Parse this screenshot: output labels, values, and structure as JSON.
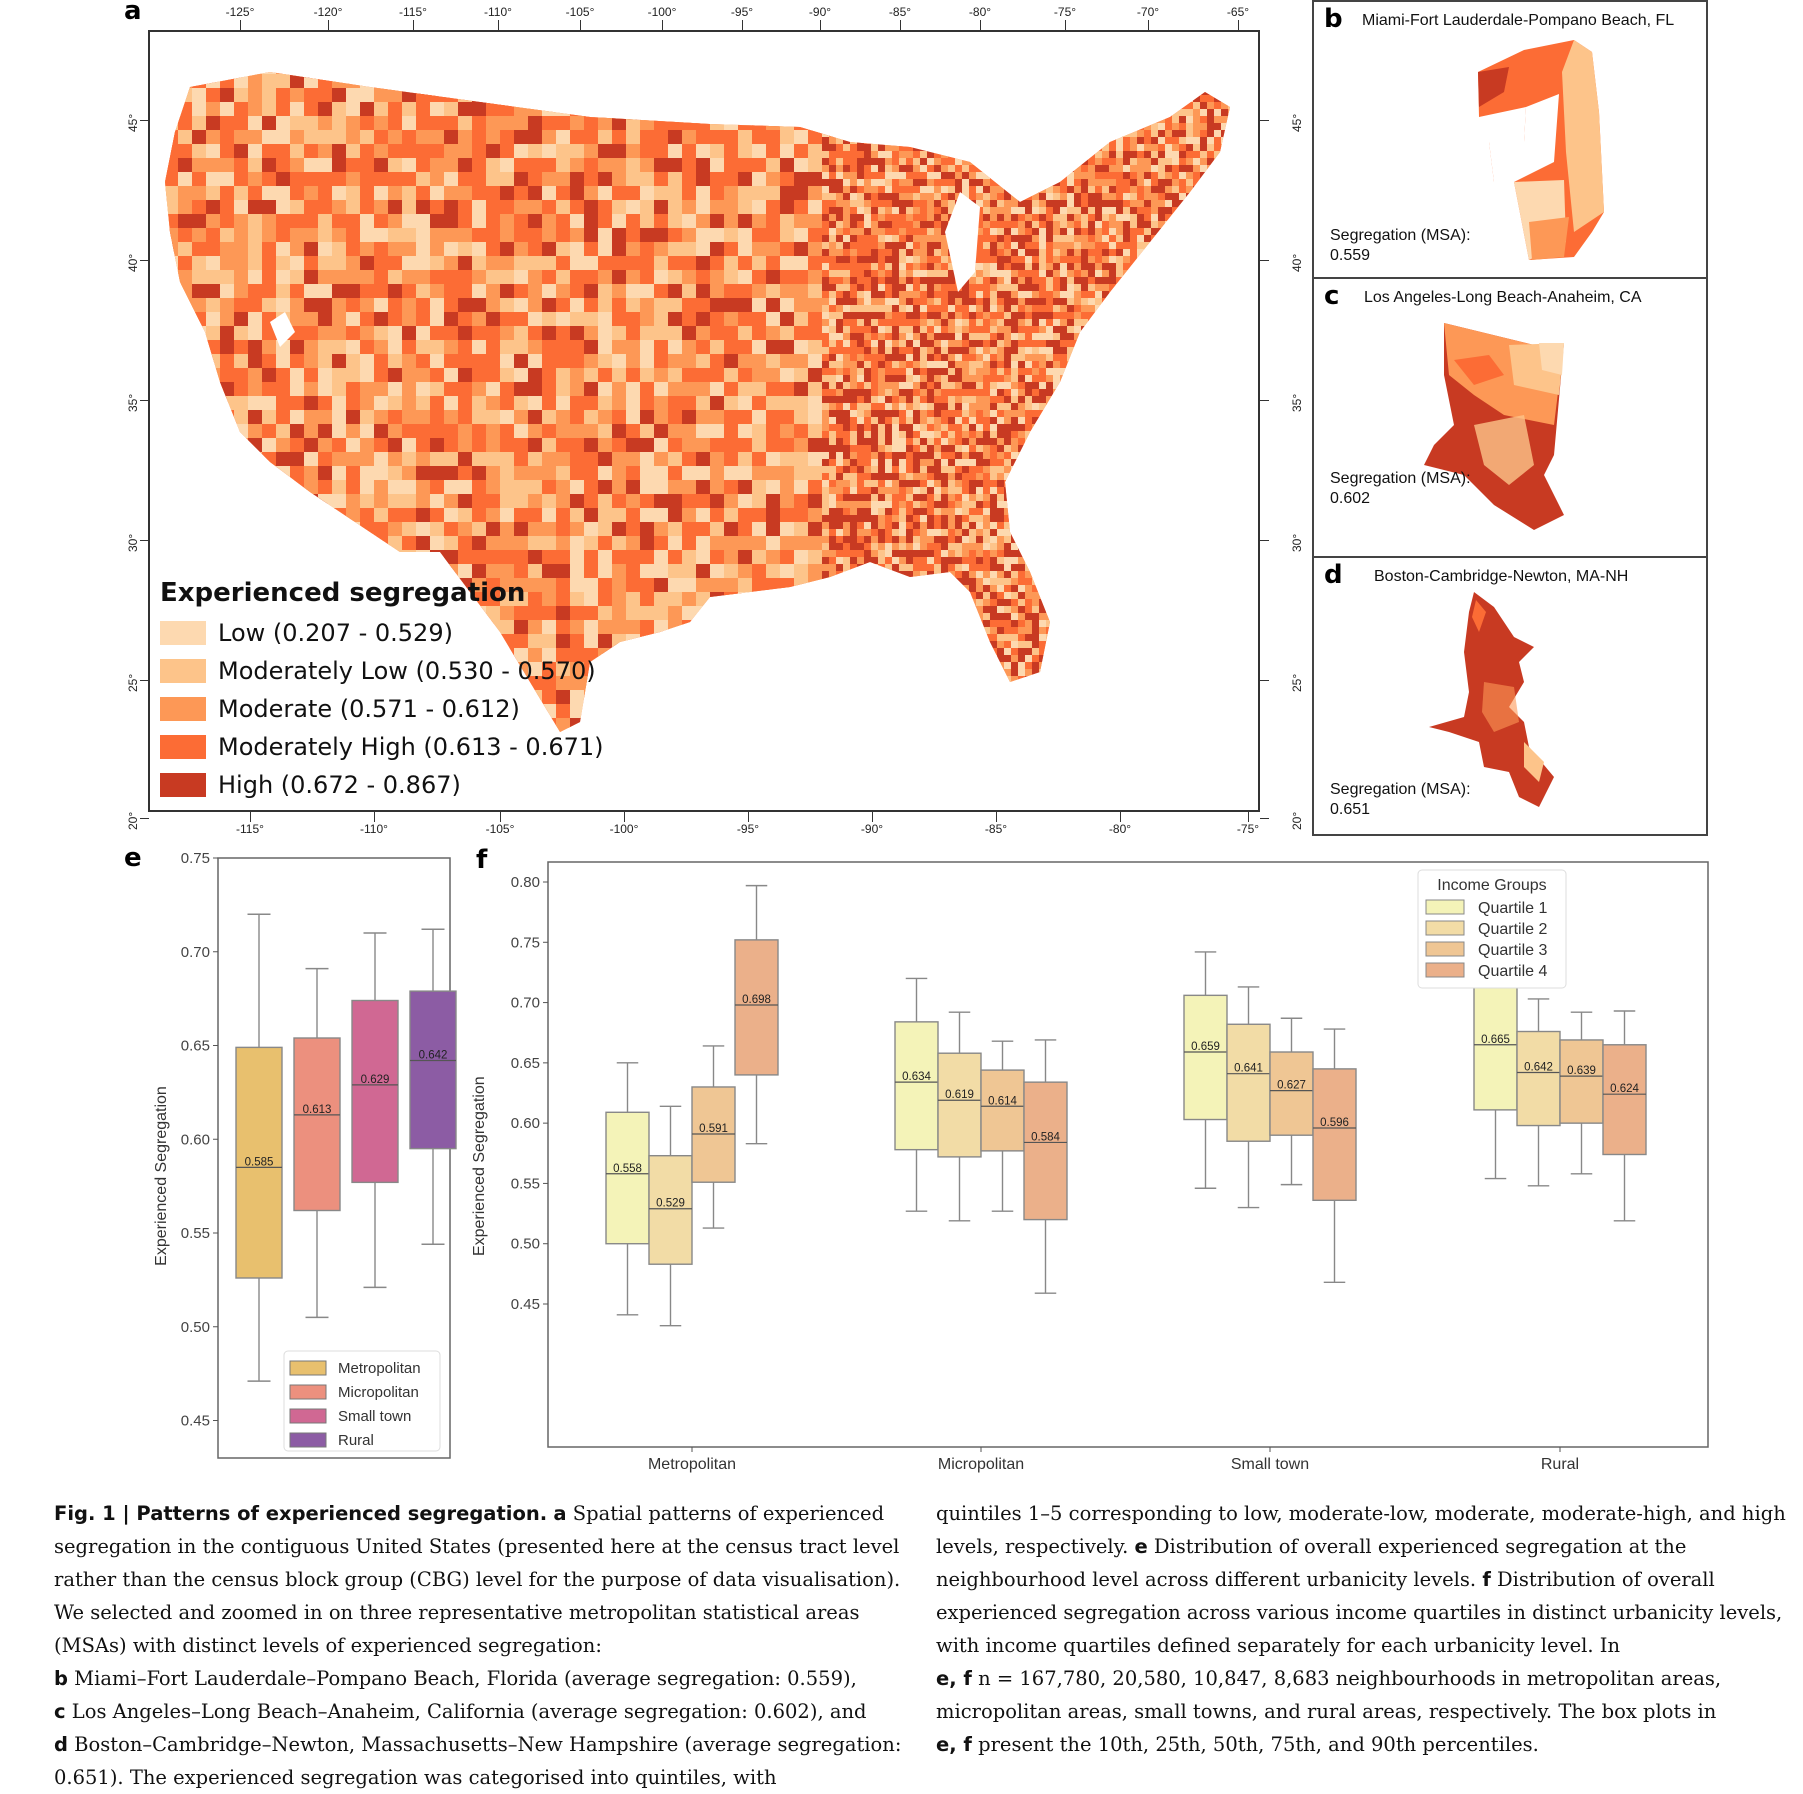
{
  "figure": {
    "panel_letters": [
      "a",
      "b",
      "c",
      "d",
      "e",
      "f"
    ]
  },
  "map_a": {
    "top_longitude_ticks": [
      "-125°",
      "-120°",
      "-115°",
      "-110°",
      "-105°",
      "-100°",
      "-95°",
      "-90°",
      "-85°",
      "-80°",
      "-75°",
      "-70°",
      "-65°"
    ],
    "bottom_longitude_ticks": [
      "-115°",
      "-110°",
      "-105°",
      "-100°",
      "-95°",
      "-90°",
      "-85°",
      "-80°",
      "-75°"
    ],
    "latitude_ticks": [
      "45°",
      "40°",
      "35°",
      "30°",
      "25°",
      "20°"
    ],
    "legend": {
      "title": "Experienced segregation",
      "items": [
        {
          "label": "Low (0.207 - 0.529)",
          "color": "#fdd9b0"
        },
        {
          "label": "Moderately Low (0.530 - 0.570)",
          "color": "#fdc48a"
        },
        {
          "label": "Moderate (0.571 - 0.612)",
          "color": "#fd9856"
        },
        {
          "label": "Moderately High (0.613 - 0.671)",
          "color": "#fc6c35"
        },
        {
          "label": "High (0.672 - 0.867)",
          "color": "#c83a22"
        }
      ]
    }
  },
  "insets": [
    {
      "letter": "b",
      "title": "Miami-Fort Lauderdale-Pompano Beach, FL",
      "seg_label": "Segregation (MSA):",
      "seg_value": "0.559"
    },
    {
      "letter": "c",
      "title": "Los Angeles-Long Beach-Anaheim, CA",
      "seg_label": "Segregation (MSA):",
      "seg_value": "0.602"
    },
    {
      "letter": "d",
      "title": "Boston-Cambridge-Newton, MA-NH",
      "seg_label": "Segregation (MSA):",
      "seg_value": "0.651"
    }
  ],
  "chart_data": [
    {
      "panel": "e",
      "type": "box",
      "ylabel": "Experienced Segregation",
      "ylim": [
        0.43,
        0.75
      ],
      "yticks": [
        "0.45",
        "0.50",
        "0.55",
        "0.60",
        "0.65",
        "0.70",
        "0.75"
      ],
      "legend_position": "bottom-right",
      "whiskers": "10th and 90th percentiles",
      "series": [
        {
          "name": "Metropolitan",
          "color": "#e8c06e",
          "p10": 0.471,
          "q1": 0.526,
          "median": 0.585,
          "q3": 0.649,
          "p90": 0.72,
          "median_label": "0.585"
        },
        {
          "name": "Micropolitan",
          "color": "#ec907e",
          "p10": 0.505,
          "q1": 0.562,
          "median": 0.613,
          "q3": 0.654,
          "p90": 0.691,
          "median_label": "0.613"
        },
        {
          "name": "Small town",
          "color": "#d06893",
          "p10": 0.521,
          "q1": 0.577,
          "median": 0.629,
          "q3": 0.674,
          "p90": 0.71,
          "median_label": "0.629"
        },
        {
          "name": "Rural",
          "color": "#8c5ca4",
          "p10": 0.544,
          "q1": 0.595,
          "median": 0.642,
          "q3": 0.679,
          "p90": 0.712,
          "median_label": "0.642"
        }
      ]
    },
    {
      "panel": "f",
      "type": "box",
      "ylabel": "Experienced Segregation",
      "ylim": [
        0.41,
        0.82
      ],
      "yticks": [
        "0.45",
        "0.50",
        "0.55",
        "0.60",
        "0.65",
        "0.70",
        "0.75",
        "0.80"
      ],
      "categories": [
        "Metropolitan",
        "Micropolitan",
        "Small town",
        "Rural"
      ],
      "legend_title": "Income Groups",
      "legend_position": "top-right",
      "series": [
        {
          "name": "Quartile 1",
          "color": "#f4f3b8",
          "boxes": [
            {
              "p10": 0.441,
              "q1": 0.5,
              "median": 0.558,
              "q3": 0.609,
              "p90": 0.65,
              "median_label": "0.558"
            },
            {
              "p10": 0.527,
              "q1": 0.578,
              "median": 0.634,
              "q3": 0.684,
              "p90": 0.72,
              "median_label": "0.634"
            },
            {
              "p10": 0.546,
              "q1": 0.603,
              "median": 0.659,
              "q3": 0.706,
              "p90": 0.742,
              "median_label": "0.659"
            },
            {
              "p10": 0.554,
              "q1": 0.611,
              "median": 0.665,
              "q3": 0.714,
              "p90": 0.749,
              "median_label": "0.665"
            }
          ]
        },
        {
          "name": "Quartile 2",
          "color": "#f2dca6",
          "boxes": [
            {
              "p10": 0.432,
              "q1": 0.483,
              "median": 0.529,
              "q3": 0.573,
              "p90": 0.614,
              "median_label": "0.529"
            },
            {
              "p10": 0.519,
              "q1": 0.572,
              "median": 0.619,
              "q3": 0.658,
              "p90": 0.692,
              "median_label": "0.619"
            },
            {
              "p10": 0.53,
              "q1": 0.585,
              "median": 0.641,
              "q3": 0.682,
              "p90": 0.713,
              "median_label": "0.641"
            },
            {
              "p10": 0.548,
              "q1": 0.598,
              "median": 0.642,
              "q3": 0.676,
              "p90": 0.703,
              "median_label": "0.642"
            }
          ]
        },
        {
          "name": "Quartile 3",
          "color": "#efc694",
          "boxes": [
            {
              "p10": 0.513,
              "q1": 0.551,
              "median": 0.591,
              "q3": 0.63,
              "p90": 0.664,
              "median_label": "0.591"
            },
            {
              "p10": 0.527,
              "q1": 0.577,
              "median": 0.614,
              "q3": 0.644,
              "p90": 0.668,
              "median_label": "0.614"
            },
            {
              "p10": 0.549,
              "q1": 0.59,
              "median": 0.627,
              "q3": 0.659,
              "p90": 0.687,
              "median_label": "0.627"
            },
            {
              "p10": 0.558,
              "q1": 0.6,
              "median": 0.639,
              "q3": 0.669,
              "p90": 0.692,
              "median_label": "0.639"
            }
          ]
        },
        {
          "name": "Quartile 4",
          "color": "#ebb08a",
          "boxes": [
            {
              "p10": 0.583,
              "q1": 0.64,
              "median": 0.698,
              "q3": 0.752,
              "p90": 0.797,
              "median_label": "0.698"
            },
            {
              "p10": 0.459,
              "q1": 0.52,
              "median": 0.584,
              "q3": 0.634,
              "p90": 0.669,
              "median_label": "0.584"
            },
            {
              "p10": 0.468,
              "q1": 0.536,
              "median": 0.596,
              "q3": 0.645,
              "p90": 0.678,
              "median_label": "0.596"
            },
            {
              "p10": 0.519,
              "q1": 0.574,
              "median": 0.624,
              "q3": 0.665,
              "p90": 0.693,
              "median_label": "0.624"
            }
          ]
        }
      ]
    }
  ],
  "caption": {
    "fig_label": "Fig. 1 | Patterns of experienced segregation.",
    "col1": [
      {
        "bold": "a",
        "text": " Spatial patterns of experienced segregation in the contiguous United States (presented here at the census tract level rather than the census block group (CBG) level for the purpose of data visualisation). We selected and zoomed in on three representative metropolitan statistical areas (MSAs) with distinct levels of experienced segregation:"
      },
      {
        "bold": "b",
        "text": " Miami–Fort Lauderdale–Pompano Beach, Florida (average segregation: 0.559),"
      },
      {
        "bold": "c",
        "text": " Los Angeles–Long Beach–Anaheim, California (average segregation: 0.602), and"
      },
      {
        "bold": "d",
        "text": " Boston–Cambridge–Newton, Massachusetts–New Hampshire (average segregation: 0.651). The experienced segregation was categorised into quintiles, with"
      }
    ],
    "col2": [
      {
        "bold": "",
        "text": "quintiles 1–5 corresponding to low, moderate-low, moderate, moderate-high, and high levels, respectively."
      },
      {
        "bold": "e",
        "text": " Distribution of overall experienced segregation at the neighbourhood level across different urbanicity levels."
      },
      {
        "bold": "f",
        "text": " Distribution of overall experienced segregation across various income quartiles in distinct urbanicity levels, with income quartiles defined separately for each urbanicity level. In"
      },
      {
        "bold": "e, f",
        "text": " n = 167,780, 20,580, 10,847, 8,683 neighbourhoods in metropolitan areas, micropolitan areas, small towns, and rural areas, respectively. The box plots in"
      },
      {
        "bold": "e, f",
        "text": " present the 10th, 25th, 50th, 75th, and 90th percentiles."
      }
    ]
  }
}
